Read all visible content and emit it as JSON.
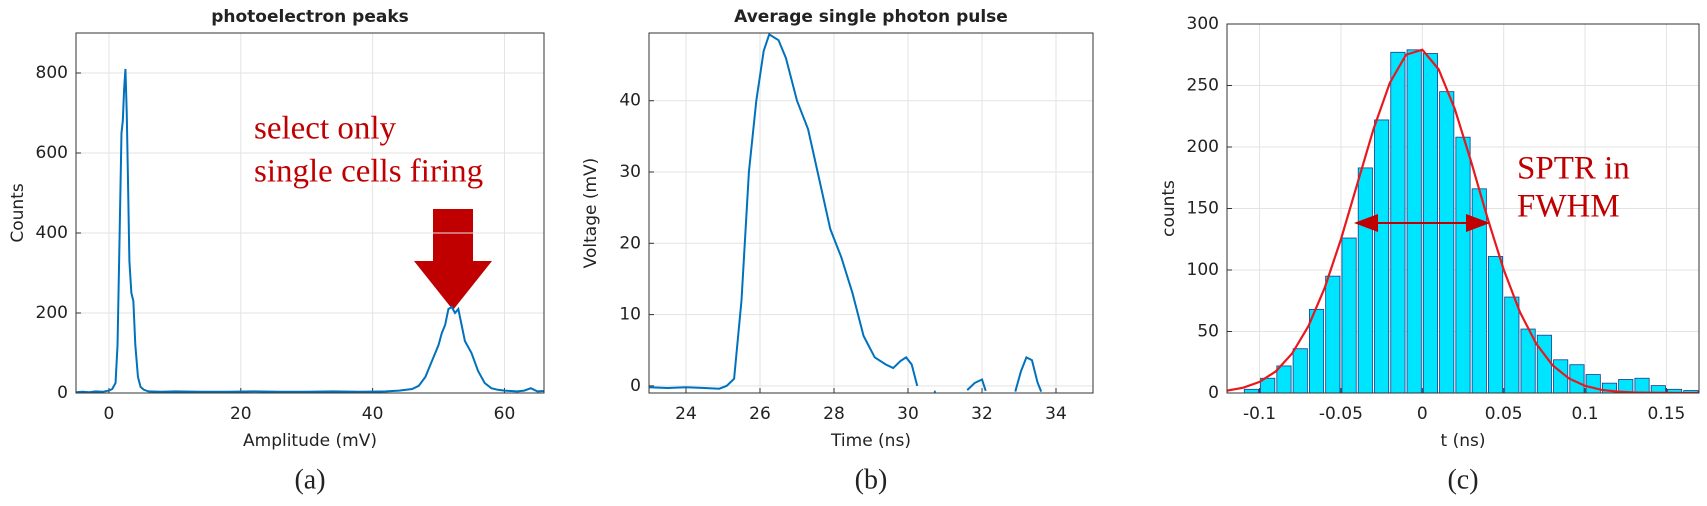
{
  "chart_data": [
    {
      "type": "line",
      "title": "photoelectron peaks",
      "xlabel": "Amplitude (mV)",
      "ylabel": "Counts",
      "caption": "(a)",
      "annotation": [
        "select only",
        "single cells firing"
      ],
      "xlim": [
        -5,
        66
      ],
      "ylim": [
        0,
        900
      ],
      "xticks": [
        0,
        20,
        40,
        60
      ],
      "yticks": [
        0,
        200,
        400,
        600,
        800
      ],
      "grid": true,
      "color": "#0072bd",
      "x": [
        -5,
        -4,
        -3,
        -2,
        -1,
        0,
        0.5,
        1,
        1.3,
        1.6,
        1.9,
        2.1,
        2.3,
        2.5,
        2.7,
        2.9,
        3.1,
        3.4,
        3.7,
        4,
        4.4,
        4.8,
        5.3,
        6,
        8,
        10,
        14,
        18,
        22,
        26,
        30,
        34,
        38,
        42,
        44,
        46,
        47,
        48,
        49,
        50,
        50.5,
        51,
        51.5,
        52,
        52.5,
        53,
        53.5,
        54,
        55,
        56,
        57,
        58,
        59,
        60,
        61,
        62,
        63,
        64,
        65,
        66
      ],
      "values": [
        2,
        3,
        2,
        4,
        3,
        6,
        10,
        25,
        120,
        380,
        650,
        680,
        760,
        810,
        700,
        520,
        330,
        250,
        230,
        120,
        40,
        15,
        8,
        4,
        3,
        4,
        3,
        3,
        4,
        3,
        3,
        4,
        3,
        4,
        6,
        10,
        18,
        40,
        80,
        120,
        150,
        170,
        210,
        215,
        200,
        210,
        170,
        130,
        100,
        55,
        25,
        12,
        8,
        6,
        5,
        4,
        6,
        12,
        4,
        5
      ]
    },
    {
      "type": "line",
      "title": "Average single photon pulse",
      "xlabel": "Time (ns)",
      "ylabel": "Voltage (mV)",
      "caption": "(b)",
      "xlim": [
        23,
        35
      ],
      "ylim": [
        -1,
        49.5
      ],
      "xticks": [
        24,
        26,
        28,
        30,
        32,
        34
      ],
      "yticks": [
        0,
        10,
        20,
        30,
        40
      ],
      "grid": true,
      "color": "#0072bd",
      "x": [
        23,
        23.5,
        24,
        24.5,
        24.9,
        25.1,
        25.3,
        25.5,
        25.7,
        25.9,
        26.1,
        26.25,
        26.5,
        26.7,
        27,
        27.3,
        27.6,
        27.9,
        28.2,
        28.5,
        28.8,
        29.1,
        29.4,
        29.6,
        29.8,
        29.95,
        30.1,
        30.25,
        30.4,
        30.7,
        30.75,
        31,
        31.6,
        31.8,
        32,
        32.1,
        32.3,
        32.9,
        33.05,
        33.2,
        33.35,
        33.5,
        33.6
      ],
      "values": [
        -0.2,
        -0.3,
        -0.2,
        -0.3,
        -0.4,
        0,
        1,
        12,
        30,
        40,
        47,
        49.3,
        48.5,
        46,
        40,
        36,
        29,
        22,
        18,
        13,
        7,
        4,
        3,
        2.5,
        3.5,
        4,
        3,
        0,
        null,
        -0.8,
        -0.8,
        null,
        -0.6,
        0.4,
        0.9,
        -0.7,
        null,
        -0.8,
        2,
        4,
        3.6,
        0.5,
        -0.8
      ]
    },
    {
      "type": "histogram",
      "xlabel": "t (ns)",
      "ylabel": "counts",
      "caption": "(c)",
      "annotation": [
        "SPTR in",
        "FWHM"
      ],
      "xlim": [
        -0.12,
        0.17
      ],
      "ylim": [
        0,
        300
      ],
      "xticks": [
        -0.1,
        -0.05,
        0,
        0.05,
        0.1,
        0.15
      ],
      "yticks": [
        0,
        50,
        100,
        150,
        200,
        250,
        300
      ],
      "grid": true,
      "color": "#00e5ff",
      "bins": [
        -0.11,
        -0.1,
        -0.09,
        -0.08,
        -0.07,
        -0.06,
        -0.05,
        -0.04,
        -0.03,
        -0.02,
        -0.01,
        0,
        0.01,
        0.02,
        0.03,
        0.04,
        0.05,
        0.06,
        0.07,
        0.08,
        0.09,
        0.1,
        0.11,
        0.12,
        0.13,
        0.14,
        0.15,
        0.16,
        0.17
      ],
      "counts": [
        3,
        12,
        22,
        36,
        68,
        95,
        126,
        183,
        222,
        277,
        279,
        276,
        245,
        208,
        166,
        111,
        78,
        52,
        47,
        27,
        23,
        15,
        8,
        11,
        12,
        6,
        3,
        2
      ],
      "fit": {
        "color": "#e8191e",
        "x": [
          -0.12,
          -0.11,
          -0.1,
          -0.09,
          -0.08,
          -0.07,
          -0.06,
          -0.05,
          -0.04,
          -0.03,
          -0.02,
          -0.01,
          0,
          0.01,
          0.02,
          0.03,
          0.04,
          0.05,
          0.06,
          0.07,
          0.08,
          0.09,
          0.1,
          0.11,
          0.12,
          0.13,
          0.14,
          0.15,
          0.16,
          0.17
        ],
        "values": [
          1.9,
          4.3,
          9,
          17.6,
          32.1,
          54.3,
          85.4,
          124.9,
          169.8,
          214.5,
          252,
          275,
          279.1,
          263.2,
          230.8,
          188.1,
          142.5,
          100.3,
          65.7,
          40,
          22.6,
          11.9,
          5.8,
          2.6,
          1.1,
          0.4,
          0.2,
          0.1,
          0,
          0
        ]
      }
    }
  ]
}
